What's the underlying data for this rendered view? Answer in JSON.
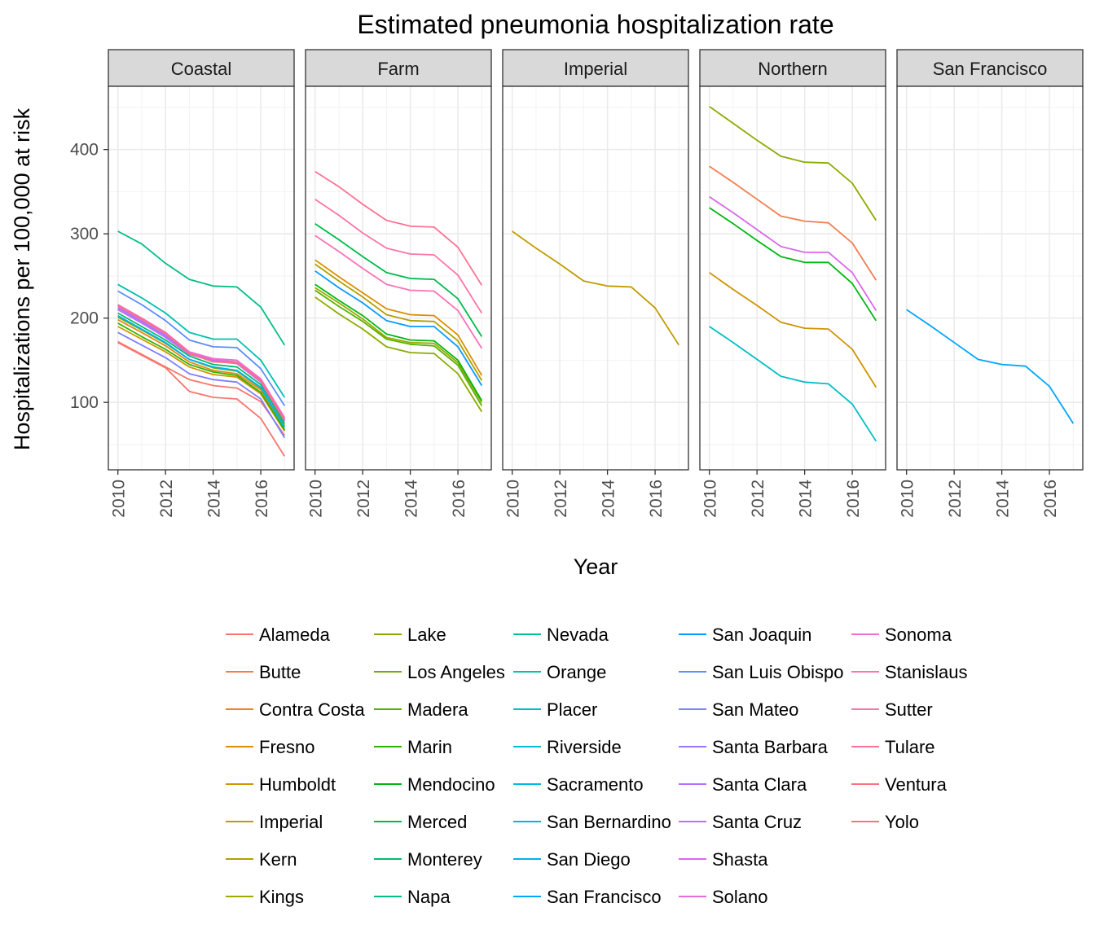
{
  "chart_data": {
    "type": "line",
    "title": "Estimated pneumonia hospitalization rate",
    "xlabel": "Year",
    "ylabel": "Hospitalizations per 100,000 at risk",
    "xlim": [
      2009.6,
      2017.4
    ],
    "ylim": [
      20,
      475
    ],
    "x_ticks": [
      "2010",
      "2012",
      "2014",
      "2016"
    ],
    "y_ticks": [
      "100",
      "200",
      "300",
      "400"
    ],
    "grid": true,
    "legend_position": "bottom",
    "x": [
      2010,
      2011,
      2012,
      2013,
      2014,
      2015,
      2016,
      2017
    ],
    "panels": [
      {
        "label": "Coastal",
        "series": [
          {
            "name": "Alameda",
            "values": [
              172,
              157,
              142,
              127,
              120,
              117,
              101,
              61
            ]
          },
          {
            "name": "Contra Costa",
            "values": [
              198,
              183,
              167,
              148,
              138,
              134,
              115,
              70
            ]
          },
          {
            "name": "Humboldt",
            "values": [
              190,
              175,
              160,
              142,
              133,
              130,
              110,
              66
            ]
          },
          {
            "name": "Los Angeles",
            "values": [
              201,
              186,
              170,
              151,
              141,
              137,
              117,
              72
            ]
          },
          {
            "name": "Marin",
            "values": [
              194,
              178,
              163,
              145,
              136,
              132,
              112,
              67
            ]
          },
          {
            "name": "Monterey",
            "values": [
              206,
              190,
              174,
              155,
              145,
              142,
              121,
              75
            ]
          },
          {
            "name": "Napa",
            "values": [
              303,
              288,
              265,
              246,
              238,
              237,
              213,
              168
            ]
          },
          {
            "name": "Orange",
            "values": [
              240,
              224,
              206,
              183,
              175,
              175,
              150,
              106
            ]
          },
          {
            "name": "San Diego",
            "values": [
              203,
              187,
              171,
              151,
              142,
              138,
              118,
              70
            ]
          },
          {
            "name": "San Luis Obispo",
            "values": [
              232,
              216,
              197,
              174,
              166,
              165,
              140,
              96
            ]
          },
          {
            "name": "San Mateo",
            "values": [
              183,
              168,
              153,
              134,
              127,
              124,
              104,
              58
            ]
          },
          {
            "name": "Santa Barbara",
            "values": [
              212,
              196,
              179,
              158,
              150,
              147,
              126,
              80
            ]
          },
          {
            "name": "Santa Cruz",
            "values": [
              210,
              194,
              177,
              157,
              149,
              146,
              124,
              78
            ]
          },
          {
            "name": "Solano",
            "values": [
              214,
              198,
              181,
              159,
              151,
              148,
              127,
              80
            ]
          },
          {
            "name": "Sonoma",
            "values": [
              216,
              200,
              183,
              160,
              152,
              150,
              128,
              82
            ]
          },
          {
            "name": "Ventura",
            "values": [
              215,
              199,
              182,
              158,
              148,
              147,
              126,
              79
            ]
          },
          {
            "name": "Yolo",
            "values": [
              171,
              156,
              141,
              113,
              106,
              104,
              81,
              36
            ]
          }
        ]
      },
      {
        "label": "Farm",
        "series": [
          {
            "name": "Fresno",
            "values": [
              269,
              249,
              230,
              211,
              204,
              203,
              180,
              132
            ]
          },
          {
            "name": "Kern",
            "values": [
              264,
              244,
              225,
              204,
              197,
              196,
              173,
              126
            ]
          },
          {
            "name": "Kings",
            "values": [
              236,
              218,
              199,
              177,
              171,
              170,
              147,
              100
            ]
          },
          {
            "name": "Lake",
            "values": [
              225,
              205,
              187,
              166,
              159,
              158,
              134,
              89
            ]
          },
          {
            "name": "Madera",
            "values": [
              233,
              214,
              196,
              175,
              169,
              167,
              144,
              96
            ]
          },
          {
            "name": "Mendocino",
            "values": [
              240,
              221,
              203,
              181,
              174,
              173,
              150,
              102
            ]
          },
          {
            "name": "Merced",
            "values": [
              312,
              293,
              273,
              254,
              247,
              246,
              223,
              178
            ]
          },
          {
            "name": "San Joaquin",
            "values": [
              256,
              236,
              218,
              197,
              190,
              190,
              166,
              120
            ]
          },
          {
            "name": "Stanislaus",
            "values": [
              298,
              279,
              259,
              240,
              233,
              232,
              209,
              164
            ]
          },
          {
            "name": "Sutter",
            "values": [
              341,
              322,
              301,
              283,
              276,
              275,
              251,
              206
            ]
          },
          {
            "name": "Tulare",
            "values": [
              374,
              356,
              335,
              316,
              309,
              308,
              284,
              239
            ]
          }
        ]
      },
      {
        "label": "Imperial",
        "series": [
          {
            "name": "Imperial",
            "values": [
              303,
              283,
              264,
              244,
              238,
              237,
              212,
              168
            ]
          }
        ]
      },
      {
        "label": "Northern",
        "series": [
          {
            "name": "Butte",
            "values": [
              380,
              361,
              341,
              321,
              315,
              313,
              289,
              245
            ]
          },
          {
            "name": "Lake",
            "values": [
              451,
              431,
              411,
              392,
              385,
              384,
              360,
              316
            ]
          },
          {
            "name": "Humboldt",
            "values": [
              254,
              234,
              215,
              195,
              188,
              187,
              163,
              118
            ]
          },
          {
            "name": "Mendocino",
            "values": [
              331,
              312,
              292,
              273,
              266,
              266,
              241,
              197
            ]
          },
          {
            "name": "Placer",
            "values": [
              190,
              171,
              151,
              131,
              124,
              122,
              98,
              54
            ]
          },
          {
            "name": "Shasta",
            "values": [
              344,
              325,
              305,
              285,
              278,
              278,
              254,
              209
            ]
          }
        ]
      },
      {
        "label": "San Francisco",
        "series": [
          {
            "name": "San Francisco",
            "values": [
              210,
              191,
              171,
              151,
              145,
              143,
              119,
              75
            ]
          }
        ]
      }
    ],
    "legend": [
      {
        "name": "Alameda",
        "color": "#F8766D"
      },
      {
        "name": "Butte",
        "color": "#F17E4F"
      },
      {
        "name": "Contra Costa",
        "color": "#E7861B"
      },
      {
        "name": "Fresno",
        "color": "#DB8E00"
      },
      {
        "name": "Humboldt",
        "color": "#CF9400"
      },
      {
        "name": "Imperial",
        "color": "#C09B00"
      },
      {
        "name": "Kern",
        "color": "#B0A100"
      },
      {
        "name": "Kings",
        "color": "#9EA700"
      },
      {
        "name": "Lake",
        "color": "#8BAB00"
      },
      {
        "name": "Los Angeles",
        "color": "#74AF00"
      },
      {
        "name": "Madera",
        "color": "#58B300"
      },
      {
        "name": "Marin",
        "color": "#2BB600"
      },
      {
        "name": "Mendocino",
        "color": "#00B813"
      },
      {
        "name": "Merced",
        "color": "#00BB4E"
      },
      {
        "name": "Monterey",
        "color": "#00BD6D"
      },
      {
        "name": "Napa",
        "color": "#00BE87"
      },
      {
        "name": "Nevada",
        "color": "#00C09A"
      },
      {
        "name": "Orange",
        "color": "#00C0AF"
      },
      {
        "name": "Placer",
        "color": "#00BFC4"
      },
      {
        "name": "Riverside",
        "color": "#00BDD3"
      },
      {
        "name": "Sacramento",
        "color": "#00BAE0"
      },
      {
        "name": "San Bernardino",
        "color": "#00B5EC"
      },
      {
        "name": "San Diego",
        "color": "#00B0F6"
      },
      {
        "name": "San Francisco",
        "color": "#00A5FF"
      },
      {
        "name": "San Joaquin",
        "color": "#0A9AFF"
      },
      {
        "name": "San Luis Obispo",
        "color": "#5A8DFF"
      },
      {
        "name": "San Mateo",
        "color": "#7D80FF"
      },
      {
        "name": "Santa Barbara",
        "color": "#9A75FF"
      },
      {
        "name": "Santa Clara",
        "color": "#B36EFB"
      },
      {
        "name": "Santa Cruz",
        "color": "#C86AF3"
      },
      {
        "name": "Shasta",
        "color": "#D968E8"
      },
      {
        "name": "Solano",
        "color": "#E86BDA"
      },
      {
        "name": "Sonoma",
        "color": "#F26DCB"
      },
      {
        "name": "Stanislaus",
        "color": "#F973B9"
      },
      {
        "name": "Sutter",
        "color": "#FD75A6"
      },
      {
        "name": "Tulare",
        "color": "#FF7293"
      },
      {
        "name": "Ventura",
        "color": "#FC717F"
      },
      {
        "name": "Yolo",
        "color": "#F8766D"
      }
    ]
  }
}
